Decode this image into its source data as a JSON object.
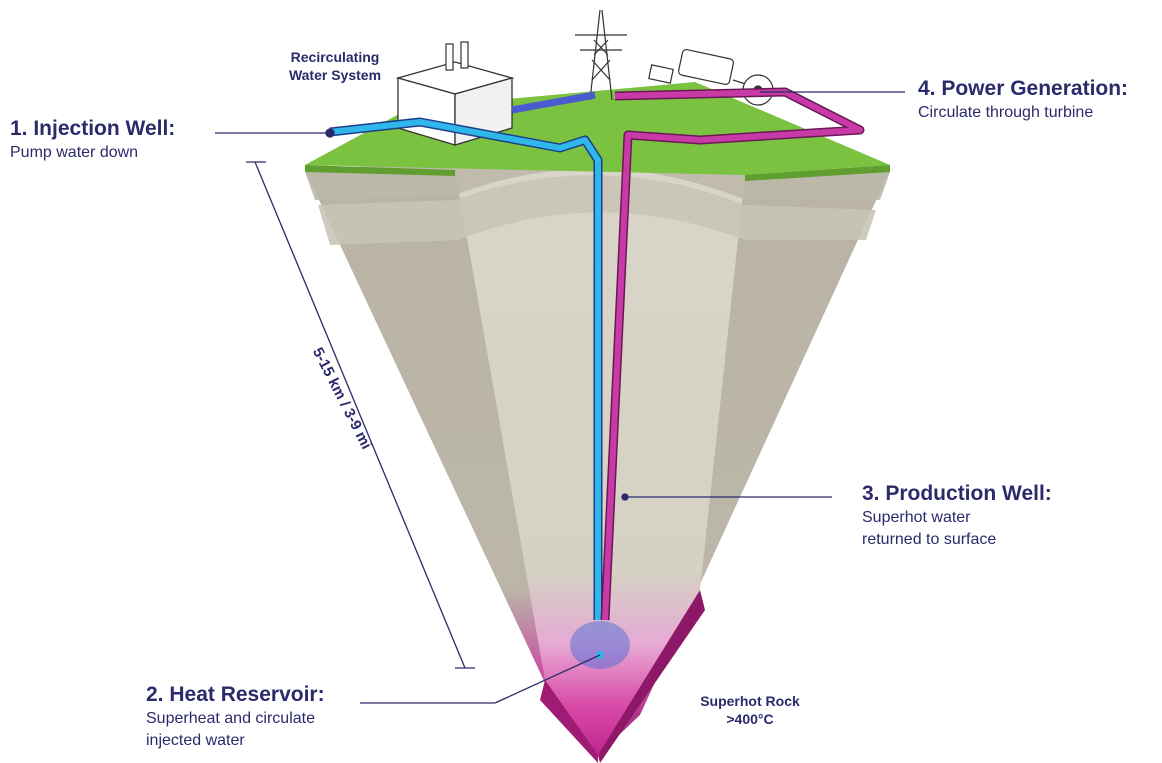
{
  "labels": {
    "injection_well": {
      "title": "1. Injection Well:",
      "desc": "Pump water down"
    },
    "heat_reservoir": {
      "title": "2. Heat Reservoir:",
      "desc_line1": "Superheat and circulate",
      "desc_line2": "injected water"
    },
    "production_well": {
      "title": "3. Production Well:",
      "desc_line1": "Superhot water",
      "desc_line2": "returned to surface"
    },
    "power_generation": {
      "title": "4. Power Generation:",
      "desc": "Circulate through turbine"
    },
    "recirculating": {
      "line1": "Recirculating",
      "line2": "Water System"
    },
    "superhot_rock": {
      "line1": "Superhot  Rock",
      "line2": ">400°C"
    },
    "depth": "5-15 km / 3-9 mi"
  },
  "colors": {
    "text": "#2b2a6b",
    "injection_pipe": "#2fb7ec",
    "production_pipe": "#c83aa6",
    "grass": "#7bc240",
    "rock": "#cfcbbe",
    "hot_rock": "#d23aa2"
  },
  "icons": [
    "power-tower-icon",
    "turbine-icon",
    "building-icon"
  ]
}
